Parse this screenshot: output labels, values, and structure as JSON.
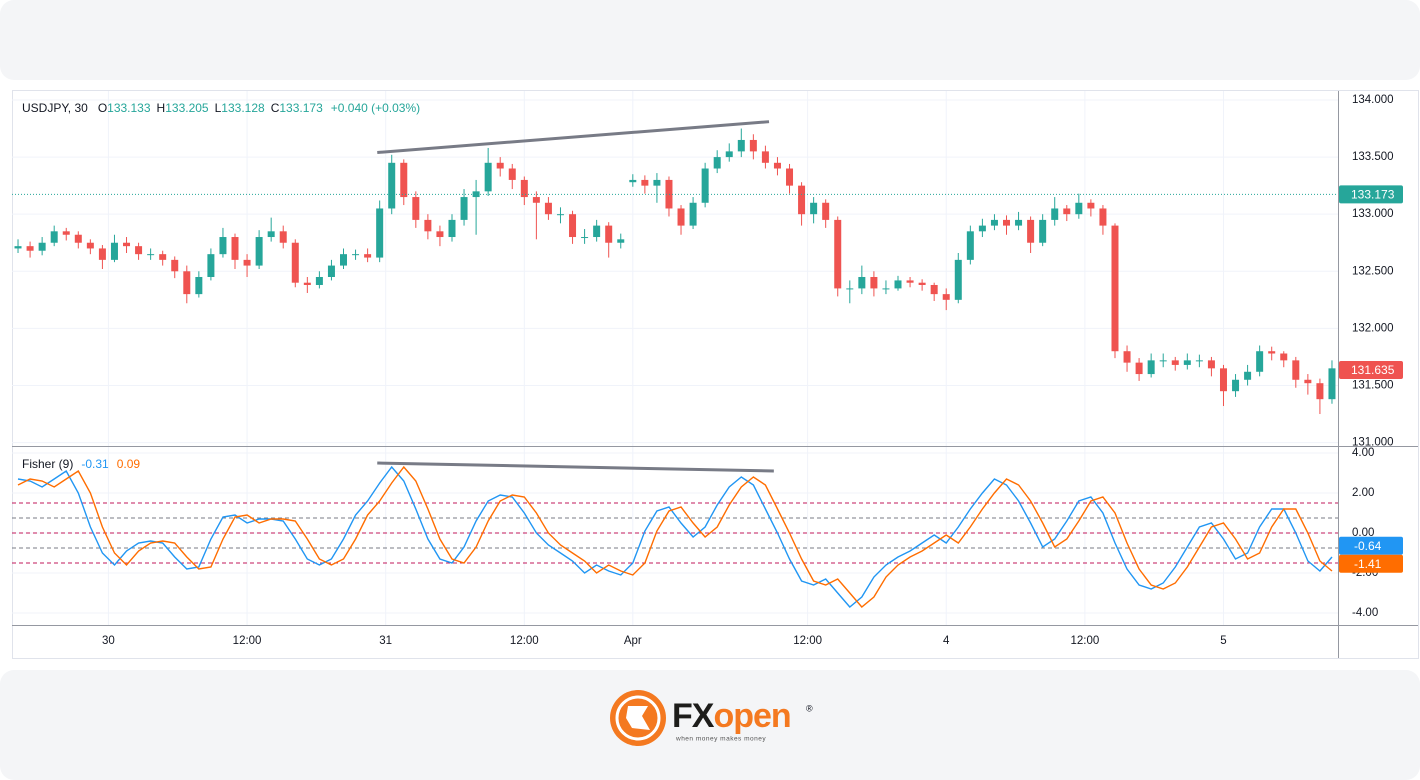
{
  "chart_data": [
    {
      "type": "candlestick",
      "legend": {
        "symbol": "USDJPY, 30",
        "fields": [
          {
            "label": "O",
            "value": 133.133
          },
          {
            "label": "H",
            "value": 133.205
          },
          {
            "label": "L",
            "value": 133.128
          },
          {
            "label": "C",
            "value": 133.173
          }
        ],
        "change": "+0.040 (+0.03%)"
      },
      "xlim": [
        -0.5,
        109.5
      ],
      "ylim": [
        130.97,
        134.07
      ],
      "yticks": [
        {
          "value": 131,
          "label": "131.000"
        },
        {
          "value": 131.5,
          "label": "131.500"
        },
        {
          "value": 132,
          "label": "132.000"
        },
        {
          "value": 132.5,
          "label": "132.500"
        },
        {
          "value": 133,
          "label": "133.000"
        },
        {
          "value": 133.5,
          "label": "133.500"
        },
        {
          "value": 134,
          "label": "134.000"
        }
      ],
      "colors": {
        "up": "#26a69a",
        "down": "#ef5350"
      },
      "open": [
        132.7,
        132.72,
        132.68,
        132.75,
        132.85,
        132.82,
        132.75,
        132.7,
        132.6,
        132.75,
        132.72,
        132.65,
        132.65,
        132.6,
        132.5,
        132.3,
        132.45,
        132.65,
        132.8,
        132.6,
        132.55,
        132.8,
        132.85,
        132.75,
        132.4,
        132.38,
        132.45,
        132.55,
        132.65,
        132.65,
        132.62,
        133.05,
        133.45,
        133.15,
        132.95,
        132.85,
        132.8,
        132.95,
        133.15,
        133.2,
        133.45,
        133.4,
        133.3,
        133.15,
        133.1,
        133.0,
        133.0,
        132.8,
        132.8,
        132.9,
        132.75,
        133.28,
        133.3,
        133.25,
        133.3,
        133.05,
        132.9,
        133.1,
        133.4,
        133.5,
        133.55,
        133.65,
        133.55,
        133.45,
        133.4,
        133.25,
        133.0,
        133.1,
        132.95,
        132.35,
        132.35,
        132.45,
        132.35,
        132.35,
        132.42,
        132.4,
        132.38,
        132.3,
        132.25,
        132.6,
        132.85,
        132.9,
        132.95,
        132.9,
        132.95,
        132.75,
        132.95,
        133.05,
        133.0,
        133.1,
        133.05,
        132.9,
        131.8,
        131.7,
        131.6,
        131.72,
        131.72,
        131.68,
        131.72,
        131.72,
        131.65,
        131.45,
        131.55,
        131.62,
        131.8,
        131.78,
        131.72,
        131.55,
        131.52,
        131.38
      ],
      "high": [
        132.78,
        132.76,
        132.8,
        132.9,
        132.88,
        132.85,
        132.78,
        132.73,
        132.82,
        132.8,
        132.75,
        132.7,
        132.68,
        132.63,
        132.55,
        132.5,
        132.7,
        132.88,
        132.83,
        132.65,
        132.86,
        132.97,
        132.9,
        132.78,
        132.45,
        132.5,
        132.6,
        132.7,
        132.69,
        132.7,
        133.12,
        133.52,
        133.48,
        133.2,
        133.0,
        132.9,
        133.0,
        133.22,
        133.3,
        133.58,
        133.5,
        133.44,
        133.33,
        133.2,
        133.15,
        133.06,
        133.03,
        132.87,
        132.95,
        132.93,
        132.83,
        133.35,
        133.34,
        133.36,
        133.33,
        133.08,
        133.15,
        133.45,
        133.56,
        133.62,
        133.75,
        133.7,
        133.6,
        133.5,
        133.44,
        133.28,
        133.15,
        133.13,
        132.98,
        132.42,
        132.55,
        132.5,
        132.42,
        132.46,
        132.45,
        132.43,
        132.4,
        132.35,
        132.66,
        132.9,
        132.96,
        133.0,
        132.99,
        133.02,
        132.98,
        133.0,
        133.15,
        133.08,
        133.18,
        133.13,
        133.08,
        132.92,
        131.85,
        131.74,
        131.78,
        131.78,
        131.75,
        131.78,
        131.77,
        131.75,
        131.68,
        131.6,
        131.68,
        131.85,
        131.84,
        131.8,
        131.75,
        131.6,
        131.56,
        131.72
      ],
      "low": [
        132.66,
        132.62,
        132.64,
        132.72,
        132.77,
        132.7,
        132.65,
        132.52,
        132.58,
        132.66,
        132.6,
        132.6,
        132.55,
        132.44,
        132.22,
        132.27,
        132.42,
        132.62,
        132.52,
        132.45,
        132.52,
        132.76,
        132.7,
        132.36,
        132.31,
        132.35,
        132.42,
        132.52,
        132.6,
        132.58,
        132.58,
        133.0,
        133.08,
        132.88,
        132.78,
        132.72,
        132.76,
        132.9,
        132.82,
        133.16,
        133.33,
        133.22,
        133.08,
        132.78,
        132.95,
        132.92,
        132.74,
        132.74,
        132.76,
        132.62,
        132.7,
        133.24,
        133.18,
        133.1,
        132.98,
        132.82,
        132.87,
        133.06,
        133.36,
        133.46,
        133.5,
        133.48,
        133.4,
        133.34,
        133.18,
        132.9,
        132.92,
        132.88,
        132.28,
        132.22,
        132.3,
        132.28,
        132.3,
        132.33,
        132.36,
        132.33,
        132.24,
        132.16,
        132.22,
        132.56,
        132.8,
        132.86,
        132.82,
        132.86,
        132.66,
        132.72,
        132.9,
        132.94,
        132.96,
        132.98,
        132.82,
        131.74,
        131.62,
        131.54,
        131.57,
        131.66,
        131.63,
        131.64,
        131.66,
        131.58,
        131.32,
        131.4,
        131.5,
        131.58,
        131.72,
        131.66,
        131.48,
        131.42,
        131.25,
        131.34
      ],
      "close": [
        132.72,
        132.68,
        132.75,
        132.85,
        132.82,
        132.75,
        132.7,
        132.6,
        132.75,
        132.72,
        132.65,
        132.65,
        132.6,
        132.5,
        132.3,
        132.45,
        132.65,
        132.8,
        132.6,
        132.55,
        132.8,
        132.85,
        132.75,
        132.4,
        132.38,
        132.45,
        132.55,
        132.65,
        132.65,
        132.62,
        133.05,
        133.45,
        133.15,
        132.95,
        132.85,
        132.8,
        132.95,
        133.15,
        133.2,
        133.45,
        133.4,
        133.3,
        133.15,
        133.1,
        133.0,
        133.0,
        132.8,
        132.8,
        132.9,
        132.75,
        132.78,
        133.3,
        133.25,
        133.3,
        133.05,
        132.9,
        133.1,
        133.4,
        133.5,
        133.55,
        133.65,
        133.55,
        133.45,
        133.4,
        133.25,
        133.0,
        133.1,
        132.95,
        132.35,
        132.35,
        132.45,
        132.35,
        132.35,
        132.42,
        132.4,
        132.38,
        132.3,
        132.25,
        132.6,
        132.85,
        132.9,
        132.95,
        132.9,
        132.95,
        132.75,
        132.95,
        133.05,
        133.0,
        133.1,
        133.05,
        132.9,
        131.8,
        131.7,
        131.6,
        131.72,
        131.72,
        131.68,
        131.72,
        131.72,
        131.65,
        131.45,
        131.55,
        131.62,
        131.8,
        131.78,
        131.72,
        131.55,
        131.52,
        131.38,
        131.65
      ],
      "price_labels": [
        {
          "value": 133.173,
          "color": "#26a69a",
          "line": true
        },
        {
          "value": 131.635,
          "color": "#ef5350",
          "line": false
        }
      ],
      "trendlines": [
        {
          "x": [
            29.8,
            62.3
          ],
          "y": [
            133.54,
            133.81
          ],
          "color": "#787b86"
        }
      ]
    },
    {
      "type": "line",
      "legend": {
        "title": "Fisher (9)"
      },
      "xlim": [
        -0.5,
        109.5
      ],
      "xticks": [
        {
          "value": 7.5,
          "label": "30"
        },
        {
          "value": 19,
          "label": "12:00"
        },
        {
          "value": 30.5,
          "label": "31"
        },
        {
          "value": 42,
          "label": "12:00"
        },
        {
          "value": 51,
          "label": "Apr"
        },
        {
          "value": 65.5,
          "label": "12:00"
        },
        {
          "value": 77,
          "label": "4"
        },
        {
          "value": 88.5,
          "label": "12:00"
        },
        {
          "value": 100,
          "label": "5"
        }
      ],
      "ylim": [
        -4.6,
        4.25
      ],
      "yticks": [
        {
          "value": -4,
          "label": "-4.00"
        },
        {
          "value": -2,
          "label": "-2.00"
        },
        {
          "value": 0,
          "label": "0.00"
        },
        {
          "value": 2,
          "label": "2.00"
        },
        {
          "value": 4,
          "label": "4.00"
        }
      ],
      "levels": [
        {
          "value": 1.5,
          "color": "#c2185b"
        },
        {
          "value": 0.75,
          "color": "#787b86"
        },
        {
          "value": 0,
          "color": "#c2185b"
        },
        {
          "value": -0.75,
          "color": "#787b86"
        },
        {
          "value": -1.5,
          "color": "#c2185b"
        }
      ],
      "series": [
        {
          "color": "#2196f3",
          "legend_value": -0.31,
          "last_label": -0.64,
          "values": [
            2.7,
            2.6,
            2.3,
            2.7,
            3.1,
            2.0,
            0.3,
            -1.0,
            -1.6,
            -0.9,
            -0.5,
            -0.4,
            -0.5,
            -1.2,
            -1.8,
            -1.7,
            -0.3,
            0.8,
            0.9,
            0.5,
            0.7,
            0.7,
            0.6,
            -0.3,
            -1.3,
            -1.6,
            -1.3,
            -0.3,
            0.9,
            1.6,
            2.5,
            3.3,
            2.6,
            1.2,
            -0.3,
            -1.3,
            -1.5,
            -0.7,
            0.6,
            1.6,
            1.9,
            1.8,
            1.0,
            0.0,
            -0.6,
            -1.0,
            -1.4,
            -2.0,
            -1.6,
            -1.9,
            -2.1,
            -1.5,
            0.1,
            1.1,
            1.3,
            0.5,
            -0.2,
            0.3,
            1.4,
            2.3,
            2.8,
            2.4,
            1.2,
            0.0,
            -1.3,
            -2.4,
            -2.6,
            -2.3,
            -3.0,
            -3.7,
            -3.2,
            -2.2,
            -1.6,
            -1.2,
            -0.9,
            -0.5,
            -0.1,
            -0.5,
            0.3,
            1.2,
            2.0,
            2.7,
            2.4,
            1.6,
            0.5,
            -0.7,
            -0.3,
            0.6,
            1.6,
            1.8,
            1.0,
            -0.5,
            -1.8,
            -2.6,
            -2.8,
            -2.5,
            -1.7,
            -0.7,
            0.3,
            0.5,
            -0.3,
            -1.3,
            -1.0,
            0.3,
            1.2,
            1.2,
            0.0,
            -1.4,
            -1.9,
            -1.2
          ]
        },
        {
          "color": "#ff6d00",
          "legend_value": 0.09,
          "last_label": -1.41,
          "values": [
            2.4,
            2.7,
            2.6,
            2.3,
            2.7,
            3.1,
            2.0,
            0.3,
            -1.0,
            -1.6,
            -0.9,
            -0.5,
            -0.4,
            -0.5,
            -1.2,
            -1.8,
            -1.7,
            -0.3,
            0.8,
            0.9,
            0.5,
            0.7,
            0.7,
            0.6,
            -0.3,
            -1.3,
            -1.6,
            -1.3,
            -0.3,
            0.9,
            1.6,
            2.5,
            3.3,
            2.6,
            1.2,
            -0.3,
            -1.3,
            -1.5,
            -0.7,
            0.6,
            1.6,
            1.9,
            1.8,
            1.0,
            0.0,
            -0.6,
            -1.0,
            -1.4,
            -2.0,
            -1.6,
            -1.9,
            -2.1,
            -1.5,
            0.1,
            1.1,
            1.3,
            0.5,
            -0.2,
            0.3,
            1.4,
            2.3,
            2.8,
            2.4,
            1.2,
            0.0,
            -1.3,
            -2.4,
            -2.6,
            -2.3,
            -3.0,
            -3.7,
            -3.2,
            -2.2,
            -1.6,
            -1.2,
            -0.9,
            -0.5,
            -0.1,
            -0.5,
            0.3,
            1.2,
            2.0,
            2.7,
            2.4,
            1.6,
            0.5,
            -0.7,
            -0.3,
            0.6,
            1.6,
            1.8,
            1.0,
            -0.5,
            -1.8,
            -2.6,
            -2.8,
            -2.5,
            -1.7,
            -0.7,
            0.3,
            0.5,
            -0.3,
            -1.3,
            -1.0,
            0.3,
            1.2,
            1.2,
            0.0,
            -1.4,
            -1.9
          ]
        }
      ],
      "trendlines": [
        {
          "x": [
            29.8,
            62.7
          ],
          "y": [
            3.5,
            3.1
          ],
          "color": "#787b86"
        }
      ]
    }
  ],
  "logo": {
    "brand": [
      "FX",
      "open"
    ],
    "registered": "®",
    "tagline": "when money makes money"
  }
}
